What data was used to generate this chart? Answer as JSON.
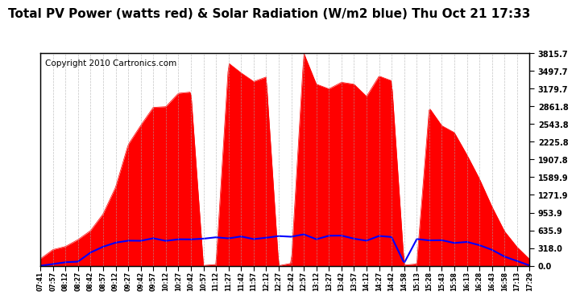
{
  "title": "Total PV Power (watts red) & Solar Radiation (W/m2 blue) Thu Oct 21 17:33",
  "copyright": "Copyright 2010 Cartronics.com",
  "ymax": 3815.7,
  "yticks": [
    0.0,
    318.0,
    635.9,
    953.9,
    1271.9,
    1589.9,
    1907.8,
    2225.8,
    2543.8,
    2861.8,
    3179.7,
    3497.7,
    3815.7
  ],
  "xtick_labels": [
    "07:41",
    "07:57",
    "08:12",
    "08:27",
    "08:42",
    "08:57",
    "09:12",
    "09:27",
    "09:42",
    "09:57",
    "10:12",
    "10:27",
    "10:42",
    "10:57",
    "11:12",
    "11:27",
    "11:42",
    "11:57",
    "12:12",
    "12:27",
    "12:42",
    "12:57",
    "13:12",
    "13:27",
    "13:42",
    "13:57",
    "14:12",
    "14:27",
    "14:42",
    "14:58",
    "15:13",
    "15:28",
    "15:43",
    "15:58",
    "16:13",
    "16:28",
    "16:43",
    "16:58",
    "17:13",
    "17:29"
  ],
  "pv_color": "#ff0000",
  "solar_color": "#0000ff",
  "bg_color": "#ffffff",
  "grid_color": "#aaaaaa",
  "title_fontsize": 11,
  "copyright_fontsize": 7.5
}
